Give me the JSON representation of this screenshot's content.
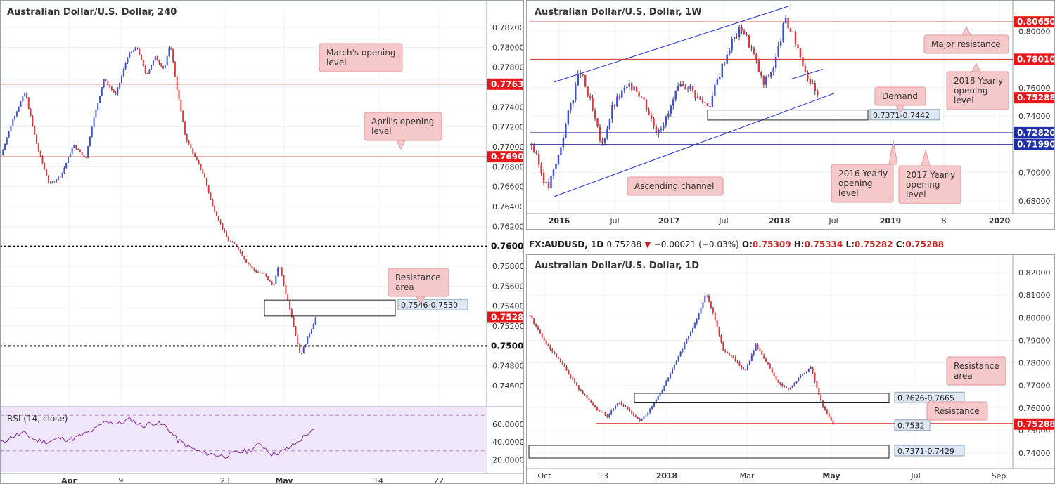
{
  "colors": {
    "candle_up": "#3d4fd6",
    "candle_down": "#e0373f",
    "level_red": "#d42a2a",
    "level_blue": "#3030a0",
    "price_tag": "#e8171b",
    "callout_fill": "#f5c9c9",
    "callout_border": "#e39a9a",
    "zone_label_fill": "#dde8f4",
    "rsi_fill": "#f0e6fa",
    "rsi_line": "#8a2a9a",
    "channel": "#2233cc",
    "grid": "#eef1f4"
  },
  "ticker": {
    "symbol": "FX:AUDUSD, 1D",
    "last": "0.75288",
    "change": "−0.00021 (−0.03%)",
    "o_label": "O:",
    "o": "0.75309",
    "h_label": "H:",
    "h": "0.75334",
    "l_label": "L:",
    "l": "0.75282",
    "c_label": "C:",
    "c": "0.75288",
    "arrow": "▼"
  },
  "chart_data": [
    {
      "id": "h4",
      "type": "candlestick",
      "title": "Australian Dollar/U.S. Dollar, 240",
      "ylim": [
        0.7448,
        0.7832
      ],
      "y_ticks": [
        "0.78200",
        "0.78000",
        "0.77800",
        "0.77600",
        "0.77400",
        "0.77200",
        "0.77000",
        "0.76800",
        "0.76600",
        "0.76400",
        "0.76200",
        "0.76000",
        "0.75800",
        "0.75600",
        "0.75400",
        "0.75200",
        "0.75000",
        "0.74800",
        "0.74600"
      ],
      "x_ticks": [
        "Apr",
        "9",
        "23",
        "May",
        "14",
        "22"
      ],
      "close_path": [
        [
          0,
          0.7692
        ],
        [
          4,
          0.7728
        ],
        [
          8,
          0.7755
        ],
        [
          12,
          0.77
        ],
        [
          16,
          0.7662
        ],
        [
          20,
          0.7672
        ],
        [
          24,
          0.7702
        ],
        [
          28,
          0.7688
        ],
        [
          30,
          0.772
        ],
        [
          34,
          0.7768
        ],
        [
          38,
          0.7752
        ],
        [
          42,
          0.7792
        ],
        [
          45,
          0.78
        ],
        [
          48,
          0.7772
        ],
        [
          51,
          0.779
        ],
        [
          54,
          0.7778
        ],
        [
          56,
          0.7804
        ],
        [
          58,
          0.7762
        ],
        [
          61,
          0.771
        ],
        [
          64,
          0.769
        ],
        [
          67,
          0.7672
        ],
        [
          70,
          0.764
        ],
        [
          73,
          0.762
        ],
        [
          75,
          0.7606
        ],
        [
          78,
          0.76
        ],
        [
          81,
          0.7585
        ],
        [
          84,
          0.7575
        ],
        [
          87,
          0.7572
        ],
        [
          90,
          0.756
        ],
        [
          92,
          0.7582
        ],
        [
          94,
          0.7555
        ],
        [
          96,
          0.7532
        ],
        [
          99,
          0.749
        ],
        [
          101,
          0.7505
        ],
        [
          104,
          0.7528
        ]
      ],
      "levels": [
        {
          "value": 0.7763,
          "label": "0.77630",
          "style": "red"
        },
        {
          "value": 0.769,
          "label": "0.76900",
          "style": "red"
        },
        {
          "value": 0.76,
          "label": "0.76000",
          "style": "dotted"
        },
        {
          "value": 0.75,
          "label": "0.75000",
          "style": "dotted"
        }
      ],
      "last_price": "0.75288",
      "zones": [
        {
          "from": 0.753,
          "to": 0.7546,
          "label": "0.7546-0.7530"
        }
      ],
      "callouts": [
        {
          "text": [
            "March's opening",
            "level"
          ]
        },
        {
          "text": [
            "April's opening",
            "level"
          ]
        },
        {
          "text": [
            "Resistance",
            "area"
          ]
        }
      ],
      "rsi": {
        "title": "RSI (14, close)",
        "ticks": [
          "60.0000",
          "40.0000",
          "20.0000"
        ],
        "bands": [
          70,
          30
        ],
        "values": [
          [
            0,
            38
          ],
          [
            4,
            46
          ],
          [
            8,
            50
          ],
          [
            12,
            42
          ],
          [
            16,
            40
          ],
          [
            20,
            44
          ],
          [
            24,
            43
          ],
          [
            28,
            48
          ],
          [
            32,
            54
          ],
          [
            36,
            64
          ],
          [
            40,
            60
          ],
          [
            44,
            66
          ],
          [
            48,
            58
          ],
          [
            52,
            62
          ],
          [
            56,
            58
          ],
          [
            60,
            42
          ],
          [
            64,
            34
          ],
          [
            68,
            28
          ],
          [
            72,
            26
          ],
          [
            76,
            24
          ],
          [
            80,
            28
          ],
          [
            84,
            30
          ],
          [
            88,
            38
          ],
          [
            92,
            26
          ],
          [
            96,
            30
          ],
          [
            100,
            38
          ],
          [
            104,
            50
          ],
          [
            106,
            52
          ]
        ]
      }
    },
    {
      "id": "weekly",
      "type": "candlestick",
      "title": "Australian Dollar/U.S. Dollar, 1W",
      "ylim": [
        0.675,
        0.818
      ],
      "y_ticks": [
        "0.80000",
        "0.78000",
        "0.76000",
        "0.74000",
        "0.72000",
        "0.70000",
        "0.68000"
      ],
      "x_ticks": [
        "2016",
        "Jul",
        "2017",
        "Jul",
        "2018",
        "Jul",
        "2019",
        "8",
        "2020"
      ],
      "close_path": [
        [
          0,
          0.72
        ],
        [
          6,
          0.688
        ],
        [
          10,
          0.712
        ],
        [
          14,
          0.745
        ],
        [
          18,
          0.772
        ],
        [
          22,
          0.748
        ],
        [
          26,
          0.718
        ],
        [
          30,
          0.746
        ],
        [
          34,
          0.758
        ],
        [
          38,
          0.762
        ],
        [
          42,
          0.75
        ],
        [
          46,
          0.73
        ],
        [
          50,
          0.738
        ],
        [
          54,
          0.758
        ],
        [
          58,
          0.762
        ],
        [
          62,
          0.752
        ],
        [
          66,
          0.748
        ],
        [
          70,
          0.772
        ],
        [
          74,
          0.792
        ],
        [
          78,
          0.803
        ],
        [
          82,
          0.785
        ],
        [
          86,
          0.762
        ],
        [
          90,
          0.776
        ],
        [
          94,
          0.808
        ],
        [
          98,
          0.792
        ],
        [
          102,
          0.77
        ],
        [
          106,
          0.7529
        ]
      ],
      "levels": [
        {
          "value": 0.8065,
          "label": "0.80650",
          "style": "red"
        },
        {
          "value": 0.7801,
          "label": "0.78010",
          "style": "red"
        },
        {
          "value": 0.7282,
          "label": "0.72820",
          "style": "blue"
        },
        {
          "value": 0.7199,
          "label": "0.71990",
          "style": "blue"
        }
      ],
      "last_price": "0.75288",
      "zones": [
        {
          "from": 0.7371,
          "to": 0.7442,
          "label": "0.7371-0.7442"
        }
      ],
      "callouts": [
        {
          "text": [
            "Major resistance"
          ]
        },
        {
          "text": [
            "2018 Yearly",
            "opening",
            "level"
          ]
        },
        {
          "text": [
            "Demand"
          ]
        },
        {
          "text": [
            "Ascending channel"
          ]
        },
        {
          "text": [
            "2016 Yearly",
            "opening",
            "level"
          ]
        },
        {
          "text": [
            "2017 Yearly",
            "opening",
            "level"
          ]
        }
      ]
    },
    {
      "id": "daily",
      "type": "candlestick",
      "title": "Australian Dollar/U.S. Dollar, 1D",
      "ylim": [
        0.736,
        0.825
      ],
      "y_ticks": [
        "0.82000",
        "0.81000",
        "0.80000",
        "0.79000",
        "0.78000",
        "0.77000",
        "0.76000",
        "0.75000",
        "0.74000"
      ],
      "x_ticks": [
        "Oct",
        "13",
        "2018",
        "Mar",
        "May",
        "Jul",
        "Sep"
      ],
      "close_path": [
        [
          0,
          0.801
        ],
        [
          6,
          0.788
        ],
        [
          12,
          0.779
        ],
        [
          18,
          0.768
        ],
        [
          24,
          0.76
        ],
        [
          28,
          0.756
        ],
        [
          32,
          0.763
        ],
        [
          36,
          0.759
        ],
        [
          40,
          0.754
        ],
        [
          44,
          0.76
        ],
        [
          48,
          0.768
        ],
        [
          52,
          0.778
        ],
        [
          56,
          0.788
        ],
        [
          60,
          0.798
        ],
        [
          64,
          0.811
        ],
        [
          67,
          0.8
        ],
        [
          70,
          0.786
        ],
        [
          74,
          0.782
        ],
        [
          78,
          0.776
        ],
        [
          82,
          0.788
        ],
        [
          86,
          0.78
        ],
        [
          90,
          0.771
        ],
        [
          94,
          0.768
        ],
        [
          98,
          0.774
        ],
        [
          102,
          0.778
        ],
        [
          106,
          0.761
        ],
        [
          110,
          0.753
        ]
      ],
      "levels": [
        {
          "value": 0.7532,
          "label": "0.7532",
          "style": "red"
        }
      ],
      "last_price": "0.75288",
      "zones": [
        {
          "from": 0.7626,
          "to": 0.7665,
          "label": "0.7626-0.7665"
        },
        {
          "from": 0.7371,
          "to": 0.7429,
          "label": "0.7371-0.7429"
        }
      ],
      "callouts": [
        {
          "text": [
            "Resistance area"
          ]
        },
        {
          "text": [
            "Resistance"
          ]
        }
      ]
    }
  ]
}
